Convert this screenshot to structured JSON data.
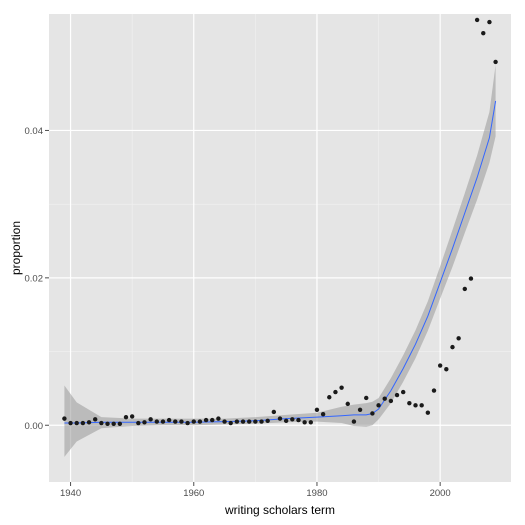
{
  "colors": {
    "panel": "#e5e5e5",
    "grid_major": "#ffffff",
    "grid_minor": "#f2f2f2",
    "ribbon": "#999999",
    "smooth_line": "#3366ff",
    "points": "#1a1a1a",
    "ticks": "#4d4d4d"
  },
  "chart_data": {
    "type": "scatter",
    "title": "",
    "xlabel": "writing scholars term",
    "ylabel": "proportion",
    "xlim": [
      1936.5,
      2011.5
    ],
    "ylim": [
      -0.0077,
      0.0558
    ],
    "x_ticks": [
      1940,
      1960,
      1980,
      2000
    ],
    "y_ticks": [
      0.0,
      0.02,
      0.04
    ],
    "x_tick_labels": [
      "1940",
      "1960",
      "1980",
      "2000"
    ],
    "y_tick_labels": [
      "0.00",
      "0.02",
      "0.04"
    ],
    "grid": true,
    "legend": "none",
    "series": [
      {
        "kind": "points",
        "x": [
          1939,
          1940,
          1941,
          1942,
          1943,
          1944,
          1945,
          1946,
          1947,
          1948,
          1949,
          1950,
          1951,
          1952,
          1953,
          1954,
          1955,
          1956,
          1957,
          1958,
          1959,
          1960,
          1961,
          1962,
          1963,
          1964,
          1965,
          1966,
          1967,
          1968,
          1969,
          1970,
          1971,
          1972,
          1973,
          1974,
          1975,
          1976,
          1977,
          1978,
          1979,
          1980,
          1981,
          1982,
          1983,
          1984,
          1985,
          1986,
          1987,
          1988,
          1989,
          1990,
          1991,
          1992,
          1993,
          1994,
          1995,
          1996,
          1997,
          1998,
          1999,
          2000,
          2001,
          2002,
          2003,
          2004,
          2005,
          2006,
          2007,
          2008,
          2009
        ],
        "y": [
          0.0009,
          0.0003,
          0.0003,
          0.0003,
          0.0004,
          0.0008,
          0.0003,
          0.0002,
          0.0002,
          0.0002,
          0.0011,
          0.0012,
          0.0003,
          0.0004,
          0.0008,
          0.0005,
          0.0005,
          0.0007,
          0.0005,
          0.0005,
          0.0003,
          0.0005,
          0.0005,
          0.0007,
          0.0007,
          0.0009,
          0.0005,
          0.0003,
          0.0005,
          0.0005,
          0.0005,
          0.0005,
          0.0005,
          0.0006,
          0.0018,
          0.0009,
          0.0006,
          0.0008,
          0.0007,
          0.0004,
          0.0004,
          0.0021,
          0.0015,
          0.0038,
          0.0045,
          0.0051,
          0.0029,
          0.0005,
          0.0021,
          0.0037,
          0.0016,
          0.0027,
          0.0036,
          0.0033,
          0.0041,
          0.0045,
          0.003,
          0.0027,
          0.0027,
          0.0017,
          0.0047,
          0.0081,
          0.0076,
          0.0106,
          0.0118,
          0.0185,
          0.0199,
          0.055,
          0.0532,
          0.0547,
          0.0493
        ]
      },
      {
        "kind": "smooth",
        "x": [
          1939,
          1941,
          1945,
          1950,
          1955,
          1960,
          1965,
          1970,
          1975,
          1980,
          1984,
          1986,
          1988,
          1989,
          1990,
          1992,
          1994,
          1996,
          1998,
          2000,
          2002,
          2004,
          2006,
          2008,
          2009
        ],
        "y": [
          0.0003,
          0.0003,
          0.0004,
          0.0004,
          0.0004,
          0.0004,
          0.0005,
          0.0006,
          0.0009,
          0.0011,
          0.0013,
          0.0014,
          0.0014,
          0.0016,
          0.0022,
          0.0047,
          0.0077,
          0.011,
          0.0148,
          0.0194,
          0.024,
          0.0288,
          0.0336,
          0.039,
          0.044
        ],
        "ymin": [
          -0.0043,
          -0.0022,
          -0.0004,
          -0.0001,
          0.0,
          0.0,
          0.0001,
          0.0002,
          0.0004,
          0.0005,
          0.0003,
          -0.0001,
          -0.0002,
          0.0,
          0.0008,
          0.003,
          0.0059,
          0.0091,
          0.0128,
          0.0172,
          0.0215,
          0.0261,
          0.0306,
          0.0356,
          0.0392
        ],
        "ymax": [
          0.0054,
          0.0031,
          0.0011,
          0.0009,
          0.0009,
          0.0009,
          0.0009,
          0.0011,
          0.0014,
          0.0017,
          0.0025,
          0.0028,
          0.003,
          0.0032,
          0.0037,
          0.0064,
          0.0095,
          0.0129,
          0.0168,
          0.0216,
          0.0265,
          0.0315,
          0.0366,
          0.0425,
          0.0489
        ]
      }
    ]
  }
}
